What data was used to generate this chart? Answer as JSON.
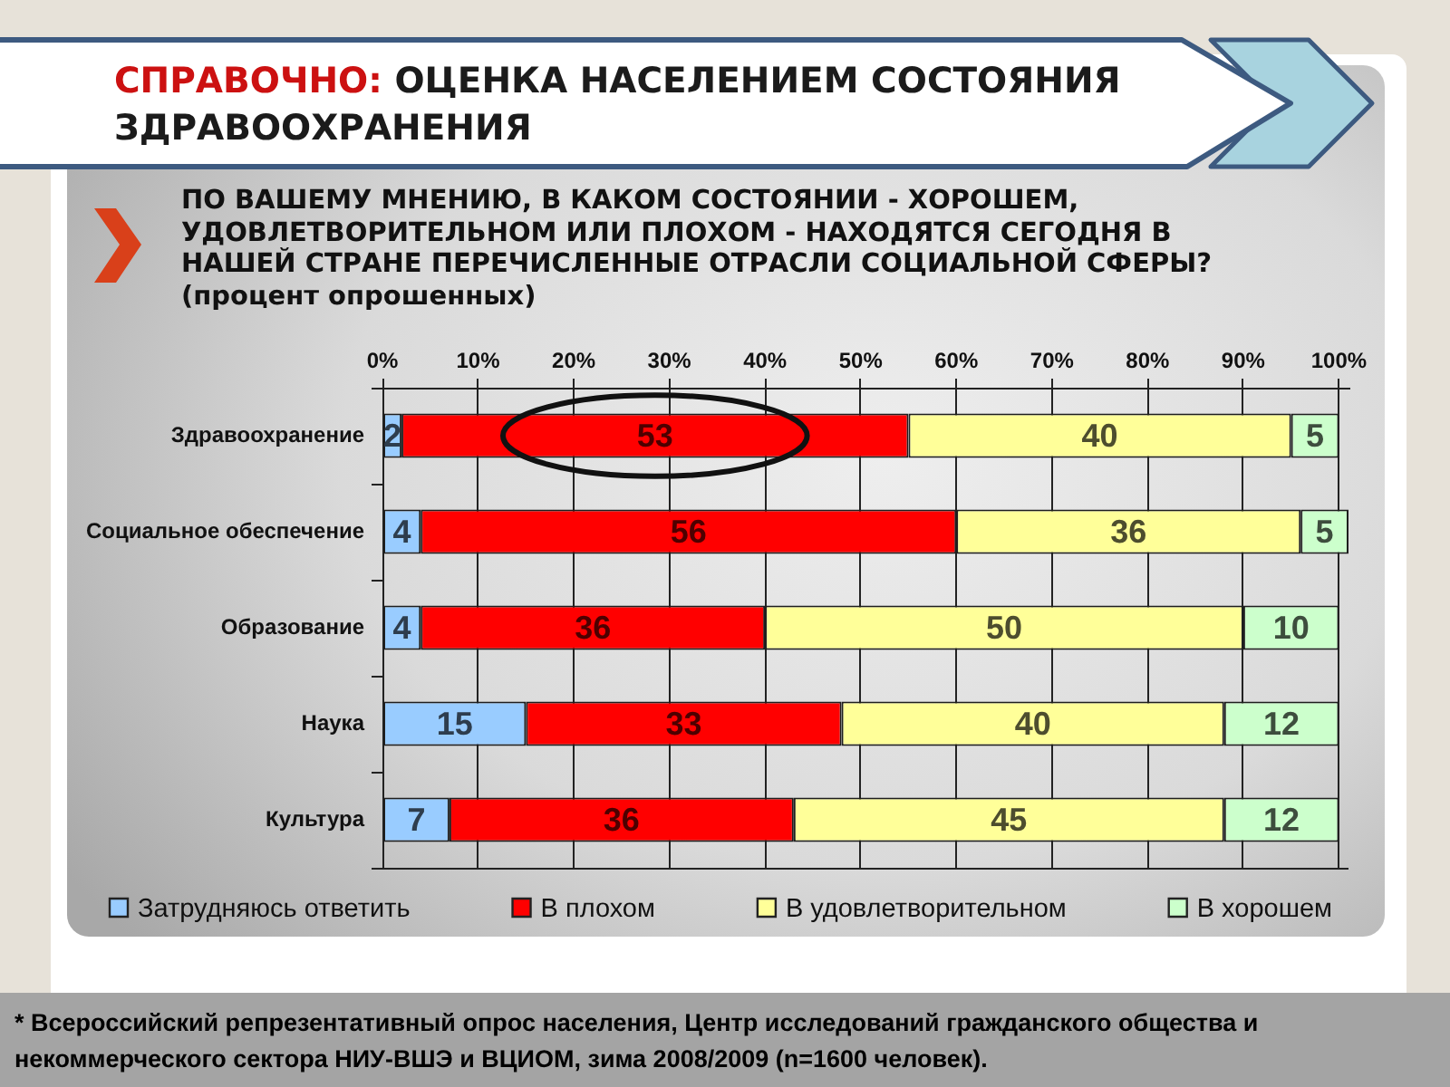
{
  "chart_data": {
    "type": "bar",
    "orientation": "horizontal",
    "stacked": true,
    "title": "СПРАВОЧНО: ОЦЕНКА НАСЕЛЕНИЕМ СОСТОЯНИЯ ЗДРАВООХРАНЕНИЯ",
    "subtitle": "ПО ВАШЕМУ МНЕНИЮ, В КАКОМ СОСТОЯНИИ - ХОРОШЕМ, УДОВЛЕТВОРИТЕЛЬНОМ ИЛИ ПЛОХОМ - НАХОДЯТСЯ СЕГОДНЯ В НАШЕЙ СТРАНЕ ПЕРЕЧИСЛЕННЫЕ ОТРАСЛИ СОЦИАЛЬНОЙ СФЕРЫ?\n(процент опрошенных)",
    "categories": [
      "Здравоохранение",
      "Социальное обеспечение",
      "Образование",
      "Наука",
      "Культура"
    ],
    "series": [
      {
        "name": "Затрудняюсь ответить",
        "color": "#99ccff",
        "values": [
          2,
          4,
          4,
          15,
          7
        ]
      },
      {
        "name": "В плохом",
        "color": "#ff0000",
        "values": [
          53,
          56,
          36,
          33,
          36
        ]
      },
      {
        "name": "В удовлетворительном",
        "color": "#ffff99",
        "values": [
          40,
          36,
          50,
          40,
          45
        ]
      },
      {
        "name": "В хорошем",
        "color": "#ccffcc",
        "values": [
          5,
          5,
          10,
          12,
          12
        ]
      }
    ],
    "xlim": [
      0,
      101
    ],
    "xticks": [
      {
        "value": 0,
        "label": "0%"
      },
      {
        "value": 10,
        "label": "10%"
      },
      {
        "value": 20,
        "label": "20%"
      },
      {
        "value": 30,
        "label": "30%"
      },
      {
        "value": 40,
        "label": "40%"
      },
      {
        "value": 50,
        "label": "50%"
      },
      {
        "value": 60,
        "label": "60%"
      },
      {
        "value": 70,
        "label": "70%"
      },
      {
        "value": 80,
        "label": "80%"
      },
      {
        "value": 90,
        "label": "90%"
      },
      {
        "value": 100,
        "label": "100%"
      }
    ],
    "grid": "x",
    "legend": "bottom",
    "data_labels": true,
    "annotations": [
      "* Всероссийский репрезентативный опрос населения, Центр исследований гражданского общества и некоммерческого сектора НИУ-ВШЭ и ВЦИОМ, зима 2008/2009 (n=1600 человек)."
    ]
  }
}
